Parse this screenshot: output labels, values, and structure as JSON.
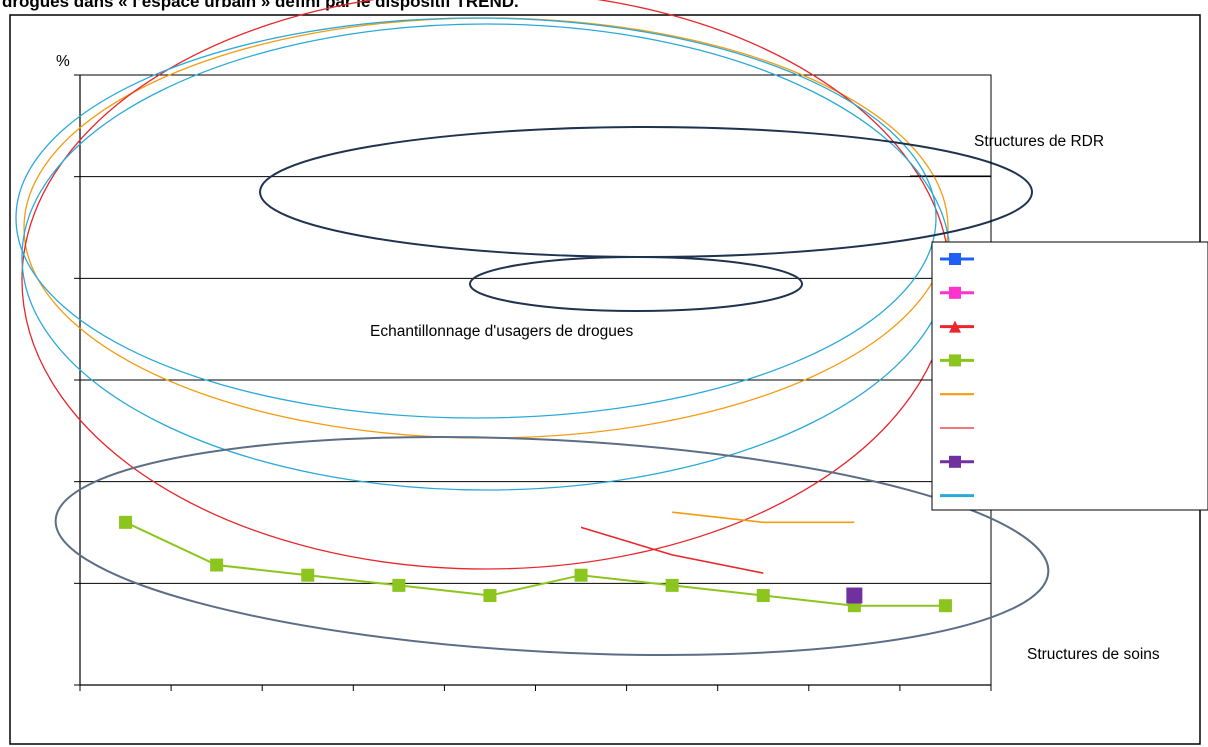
{
  "title": "drogues dans « l’espace urbain » défini par le dispositif TREND.",
  "chart_data": {
    "type": "line",
    "ylabel": "%",
    "xlabel": "",
    "title": "",
    "grid": true,
    "legend": "right",
    "x": [
      1,
      2,
      3,
      4,
      5,
      6,
      7,
      8,
      9,
      10
    ],
    "ylim": [
      0,
      6
    ],
    "series": [
      {
        "marker": "square",
        "color": "#8cc51e",
        "values": [
          1.6,
          1.18,
          1.08,
          0.98,
          0.88,
          1.08,
          0.98,
          0.88,
          0.78,
          0.78
        ]
      },
      {
        "marker": "none",
        "color": "#f39c12",
        "points": [
          [
            7,
            1.7
          ],
          [
            8,
            1.6
          ],
          [
            9,
            1.6
          ]
        ]
      },
      {
        "marker": "none",
        "color": "#e8262b",
        "points": [
          [
            6,
            1.55
          ],
          [
            7,
            1.28
          ],
          [
            8,
            1.1
          ]
        ]
      },
      {
        "marker": "square",
        "color": "#7030a0",
        "points": [
          [
            9,
            0.88
          ]
        ]
      }
    ],
    "legend_markers": [
      {
        "marker": "square",
        "color": "#1f5ff5"
      },
      {
        "marker": "square",
        "color": "#ff33cc"
      },
      {
        "marker": "triangle",
        "color": "#e8262b"
      },
      {
        "marker": "square",
        "color": "#8cc51e"
      },
      {
        "marker": "none",
        "color": "#f39c12"
      },
      {
        "marker": "none",
        "color": "#e8262b"
      },
      {
        "marker": "square",
        "color": "#7030a0"
      },
      {
        "marker": "none",
        "color": "#2aa9d8"
      }
    ],
    "annotations": {
      "rdr": "Structures de RDR",
      "echantillonnage": "Echantillonnage d'usagers de drogues",
      "soins": "Structures de soins"
    }
  }
}
